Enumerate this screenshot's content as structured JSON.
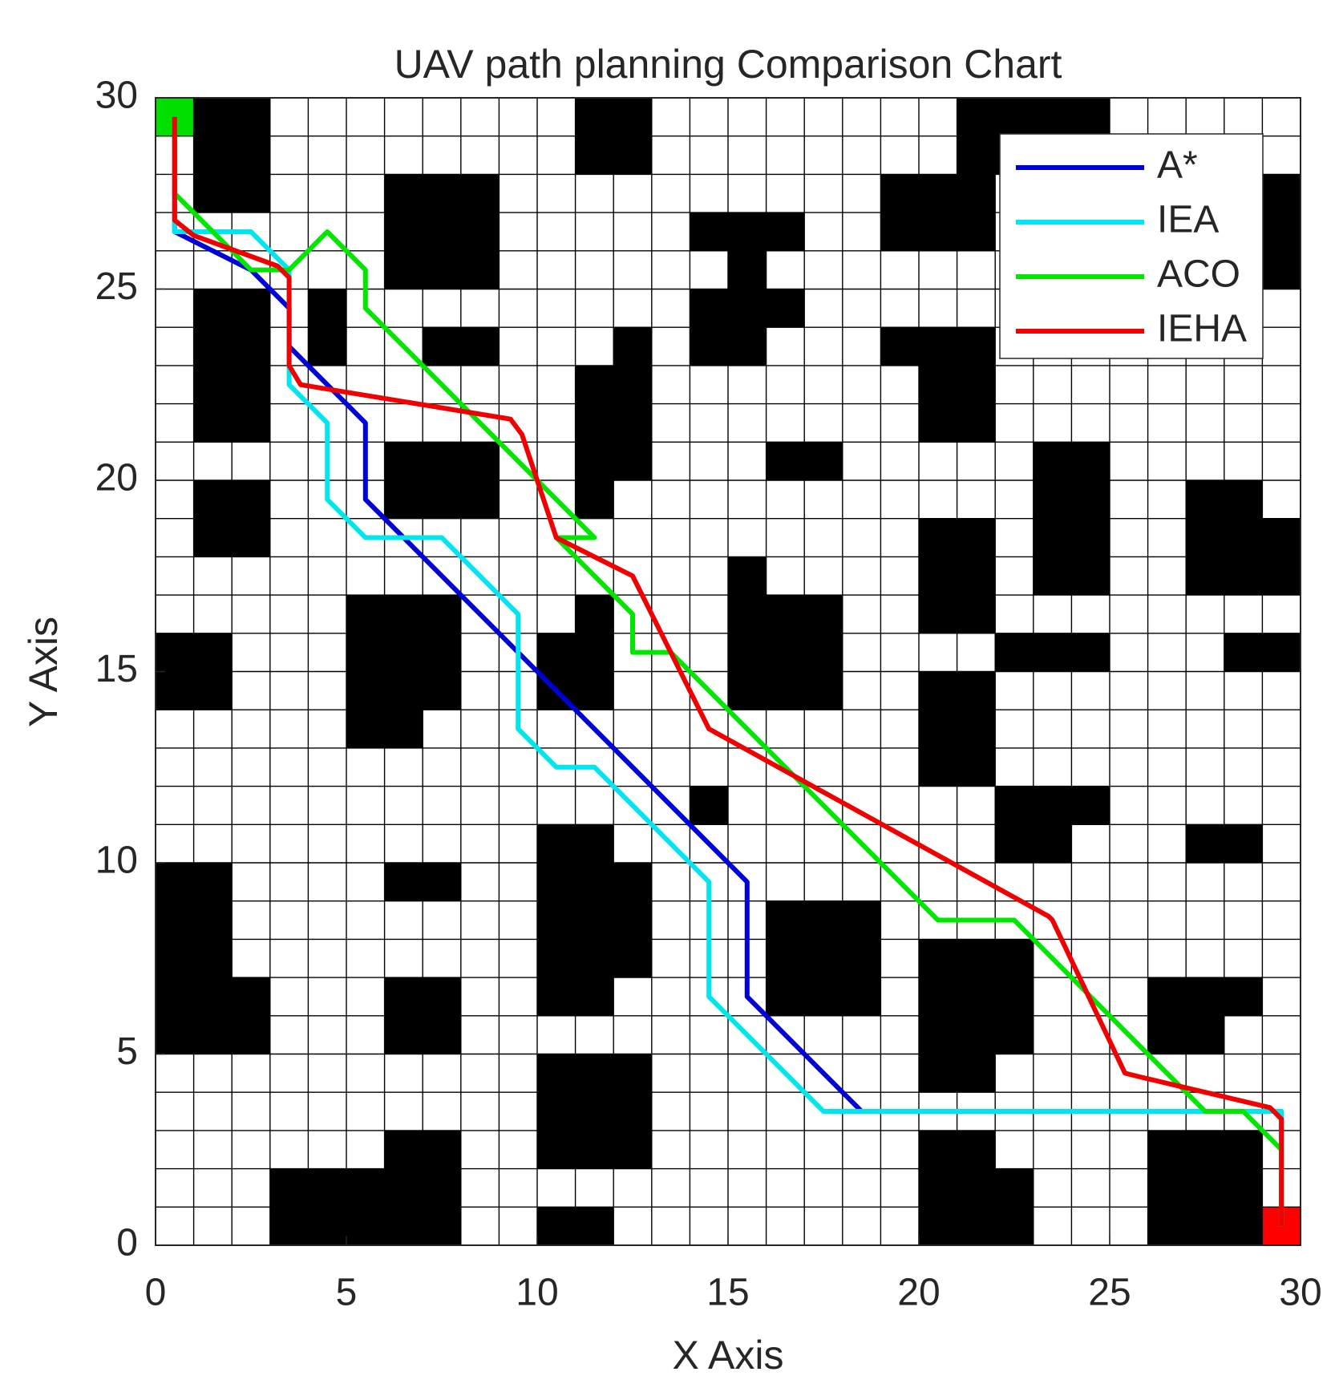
{
  "chart_data": {
    "type": "grid-path",
    "title": "UAV path planning Comparison Chart",
    "x_label": "X Axis",
    "y_label": "Y Axis",
    "xlim": [
      0,
      30
    ],
    "ylim": [
      0,
      30
    ],
    "xticks": [
      0,
      5,
      10,
      15,
      20,
      25,
      30
    ],
    "yticks": [
      0,
      5,
      10,
      15,
      20,
      25,
      30
    ],
    "xgrid": [
      0,
      1,
      2,
      3,
      4,
      5,
      6,
      7,
      8,
      9,
      10,
      11,
      12,
      13,
      14,
      15,
      16,
      17,
      18,
      19,
      20,
      21,
      22,
      23,
      24,
      25,
      26,
      27,
      28,
      29,
      30
    ],
    "ygrid": [
      0,
      1,
      2,
      3,
      4,
      5,
      6,
      7,
      8,
      9,
      10,
      11,
      12,
      13,
      14,
      15,
      16,
      17,
      18,
      19,
      20,
      21,
      22,
      23,
      24,
      25,
      26,
      27,
      28,
      29,
      30
    ],
    "grid_color": "#000000",
    "obstacle_color": "#000000",
    "obstacles": [
      [
        1,
        27,
        2,
        3
      ],
      [
        11,
        28,
        2,
        2
      ],
      [
        21,
        28,
        4,
        2
      ],
      [
        19,
        26,
        3,
        2
      ],
      [
        6,
        25,
        3,
        3
      ],
      [
        29,
        25,
        1,
        3
      ],
      [
        14,
        26,
        3,
        1
      ],
      [
        15,
        25,
        1,
        1
      ],
      [
        14,
        24,
        3,
        1
      ],
      [
        14,
        23,
        2,
        1
      ],
      [
        1,
        21,
        2,
        4
      ],
      [
        4,
        23,
        1,
        2
      ],
      [
        7,
        23,
        2,
        1
      ],
      [
        12,
        23,
        1,
        1
      ],
      [
        11,
        20,
        2,
        3
      ],
      [
        11,
        19,
        1,
        1
      ],
      [
        19,
        23,
        3,
        1
      ],
      [
        20,
        21,
        2,
        2
      ],
      [
        16,
        20,
        2,
        1
      ],
      [
        6,
        19,
        3,
        2
      ],
      [
        1,
        18,
        2,
        2
      ],
      [
        23,
        17,
        2,
        4
      ],
      [
        27,
        17,
        2,
        3
      ],
      [
        29,
        17,
        1,
        2
      ],
      [
        20,
        16,
        2,
        3
      ],
      [
        15,
        17,
        1,
        1
      ],
      [
        15,
        14,
        3,
        3
      ],
      [
        11,
        16,
        1,
        1
      ],
      [
        10,
        14,
        2,
        2
      ],
      [
        5,
        14,
        3,
        3
      ],
      [
        5,
        13,
        2,
        1
      ],
      [
        0,
        14,
        2,
        2
      ],
      [
        22,
        15,
        3,
        1
      ],
      [
        28,
        15,
        2,
        1
      ],
      [
        20,
        12,
        2,
        3
      ],
      [
        14,
        11,
        1,
        1
      ],
      [
        22,
        11,
        3,
        1
      ],
      [
        22,
        10,
        2,
        1
      ],
      [
        27,
        10,
        2,
        1
      ],
      [
        10,
        10,
        2,
        1
      ],
      [
        10,
        7,
        3,
        3
      ],
      [
        10,
        6,
        2,
        1
      ],
      [
        6,
        9,
        2,
        1
      ],
      [
        0,
        7,
        2,
        3
      ],
      [
        0,
        5,
        3,
        2
      ],
      [
        16,
        6,
        3,
        3
      ],
      [
        20,
        5,
        3,
        3
      ],
      [
        20,
        4,
        2,
        1
      ],
      [
        26,
        6,
        3,
        1
      ],
      [
        26,
        5,
        2,
        1
      ],
      [
        6,
        5,
        2,
        2
      ],
      [
        10,
        2,
        3,
        3
      ],
      [
        6,
        2,
        2,
        1
      ],
      [
        3,
        0,
        5,
        2
      ],
      [
        10,
        0,
        2,
        1
      ],
      [
        20,
        2,
        2,
        1
      ],
      [
        20,
        0,
        3,
        2
      ],
      [
        26,
        0,
        3,
        3
      ]
    ],
    "start": [
      0,
      29
    ],
    "start_color": "#00e000",
    "goal": [
      29,
      0
    ],
    "goal_color": "#ff0000",
    "legend": "northeast",
    "series": [
      {
        "name": "A*",
        "color": "#0000d8",
        "x": [
          0.5,
          0.5,
          2.5,
          3.5,
          3.5,
          5.5,
          5.5,
          15.5,
          15.5,
          15.5,
          18.5,
          29.5,
          29.5
        ],
        "values": [
          29.5,
          26.5,
          25.5,
          24.5,
          23.5,
          21.5,
          19.5,
          9.5,
          8.5,
          6.5,
          3.5,
          3.5,
          0.5
        ]
      },
      {
        "name": "IEA",
        "color": "#00e6f0",
        "x": [
          0.5,
          0.5,
          2.5,
          3.5,
          3.5,
          4.5,
          4.5,
          5.5,
          7.5,
          9.5,
          9.5,
          10.5,
          11.5,
          14.5,
          14.5,
          17.5,
          29.5,
          29.5
        ],
        "values": [
          29.5,
          26.5,
          26.5,
          25.5,
          22.5,
          21.5,
          19.5,
          18.5,
          18.5,
          16.5,
          13.5,
          12.5,
          12.5,
          9.5,
          6.5,
          3.5,
          3.5,
          0.5
        ]
      },
      {
        "name": "ACO",
        "color": "#00e600",
        "x": [
          0.5,
          0.5,
          2.5,
          3.5,
          4.5,
          5.5,
          5.5,
          11.5,
          10.5,
          12.5,
          12.5,
          13.5,
          20.5,
          22.5,
          27.5,
          28.5,
          29.5,
          29.5
        ],
        "values": [
          29.5,
          27.5,
          25.5,
          25.5,
          26.5,
          25.5,
          24.5,
          18.5,
          18.5,
          16.5,
          15.5,
          15.5,
          8.5,
          8.5,
          3.5,
          3.5,
          2.5,
          0.5
        ]
      },
      {
        "name": "IEHA",
        "color": "#f00000",
        "x": [
          0.5,
          0.5,
          1.0,
          3.2,
          3.5,
          3.5,
          3.8,
          9.3,
          9.6,
          10.0,
          10.5,
          12.5,
          14.5,
          23.4,
          23.5,
          25.4,
          25.8,
          29.2,
          29.5,
          29.5
        ],
        "values": [
          29.5,
          26.8,
          26.4,
          25.6,
          25.3,
          23.0,
          22.5,
          21.6,
          21.2,
          20.0,
          18.5,
          17.5,
          13.5,
          8.6,
          8.5,
          4.5,
          4.4,
          3.6,
          3.3,
          0.5
        ]
      }
    ]
  }
}
